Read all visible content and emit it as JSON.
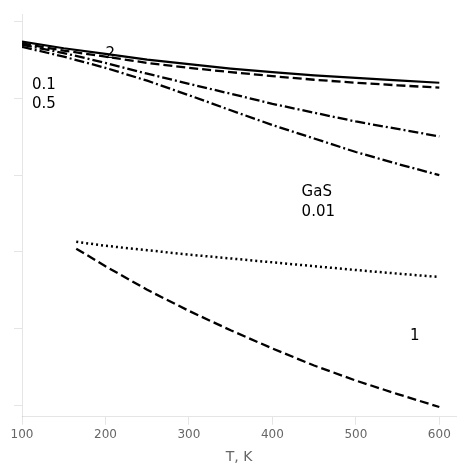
{
  "chart_data": {
    "type": "line",
    "x_label": "T, K",
    "log": "y",
    "grid": false,
    "tick_labels": "x",
    "color": "#000000",
    "xlim": [
      100,
      620
    ],
    "ylim": [
      70794578438413.8,
      1.2589254117941674e+19
    ],
    "xticks": [
      100,
      200,
      300,
      400,
      500,
      600
    ],
    "yticks": [
      100000000000000.0,
      1000000000000000.0,
      1e+16,
      1e+17,
      1e+18,
      1e+19
    ],
    "annotations": [
      {
        "text": "2",
        "x": 200,
        "y": 3.8e+18
      },
      {
        "text": "0.1",
        "x": 112,
        "y": 1.5e+18
      },
      {
        "text": "0.5",
        "x": 112,
        "y": 8.5e+17
      },
      {
        "text": "GaS",
        "x": 435,
        "y": 6e+16
      },
      {
        "text": "0.01",
        "x": 435,
        "y": 3.3e+16
      },
      {
        "text": "1",
        "x": 565,
        "y": 800000000000000.0
      }
    ],
    "series": [
      {
        "line_style": "solid",
        "x": [
          100,
          150,
          200,
          250,
          300,
          350,
          400,
          450,
          500,
          550,
          600
        ],
        "values": [
          5.5e+18,
          4.5e+18,
          3.8e+18,
          3.2e+18,
          2.8e+18,
          2.45e+18,
          2.2e+18,
          2e+18,
          1.85e+18,
          1.72e+18,
          1.6e+18
        ]
      },
      {
        "line_style": "dashed",
        "x": [
          100,
          150,
          200,
          250,
          300,
          350,
          400,
          450,
          500,
          550,
          600
        ],
        "values": [
          5.2e+18,
          4.2e+18,
          3.5e+18,
          2.9e+18,
          2.5e+18,
          2.2e+18,
          1.95e+18,
          1.75e+18,
          1.6e+18,
          1.48e+18,
          1.38e+18
        ]
      },
      {
        "line_style": "dashdot",
        "x": [
          100,
          150,
          200,
          250,
          300,
          350,
          400,
          450,
          500,
          550,
          600
        ],
        "values": [
          5e+18,
          3.9e+18,
          2.9e+18,
          2.1e+18,
          1.55e+18,
          1.15e+18,
          8.5e+17,
          6.5e+17,
          5e+17,
          4e+17,
          3.2e+17
        ]
      },
      {
        "line_style": "dashdot",
        "x": [
          100,
          150,
          200,
          250,
          300,
          350,
          400,
          450,
          500,
          550,
          600
        ],
        "values": [
          4.7e+18,
          3.5e+18,
          2.5e+18,
          1.7e+18,
          1.1e+18,
          7e+17,
          4.5e+17,
          3e+17,
          2e+17,
          1.4e+17,
          1e+17
        ]
      },
      {
        "line_style": "dotted",
        "x": [
          165,
          200,
          250,
          300,
          350,
          400,
          450,
          500,
          550,
          600
        ],
        "values": [
          1.35e+16,
          1.2e+16,
          1.05e+16,
          9200000000000000.0,
          8200000000000000.0,
          7300000000000000.0,
          6500000000000000.0,
          5800000000000000.0,
          5200000000000000.0,
          4700000000000000.0
        ]
      },
      {
        "line_style": "dashed",
        "x": [
          165,
          200,
          250,
          300,
          350,
          400,
          450,
          500,
          550,
          600
        ],
        "values": [
          1.1e+16,
          6500000000000000.0,
          3200000000000000.0,
          1700000000000000.0,
          950000000000000.0,
          550000000000000.0,
          330000000000000.0,
          210000000000000.0,
          140000000000000.0,
          95000000000000.0
        ]
      }
    ]
  }
}
